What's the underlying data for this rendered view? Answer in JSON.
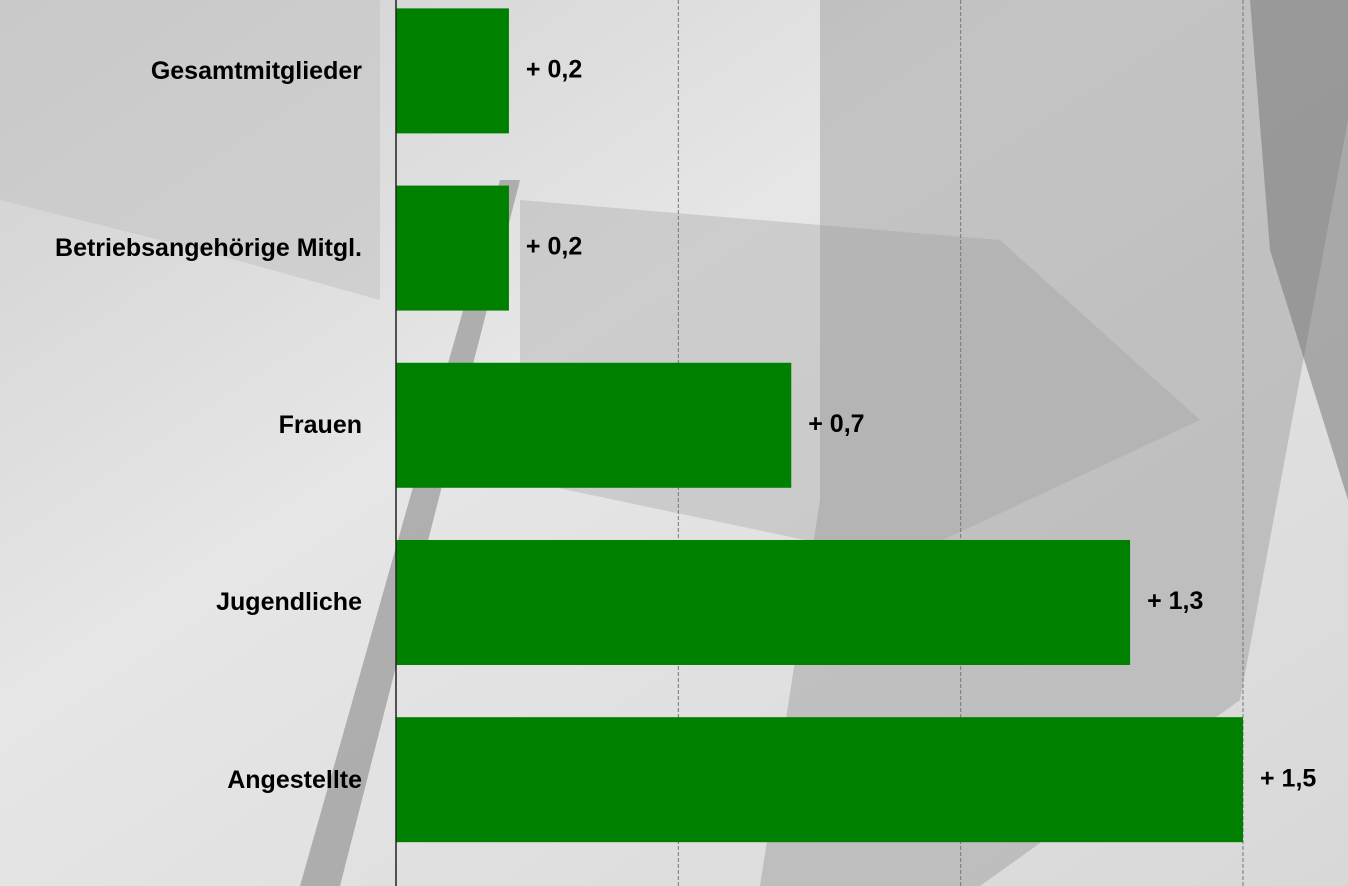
{
  "chart_data": {
    "type": "hbar",
    "categories": [
      "Gesamtmitglieder",
      "Betriebsangehörige Mitgl.",
      "Frauen",
      "Jugendliche",
      "Angestellte"
    ],
    "values": [
      0.2,
      0.2,
      0.7,
      1.3,
      1.5
    ],
    "value_labels": [
      "+ 0,2",
      "+ 0,2",
      "+ 0,7",
      "+ 1,3",
      "+ 1,5"
    ],
    "color": "#008000",
    "xlim": [
      0,
      1.5
    ],
    "grid_lines": [
      0.5,
      1,
      1.5
    ]
  }
}
